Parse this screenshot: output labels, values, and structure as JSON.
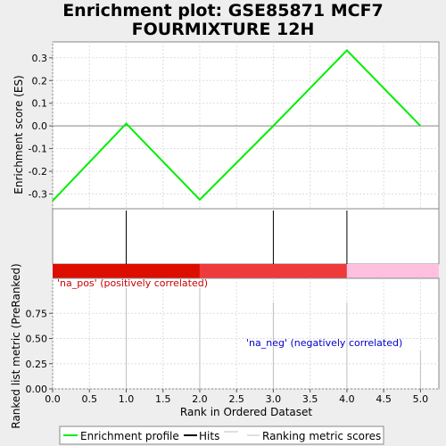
{
  "title": [
    "Enrichment plot: GSE85871 MCF7",
    "FOURMIXTURE 12H"
  ],
  "chart_data": [
    {
      "type": "line",
      "name": "enrichment-profile",
      "ylabel": "Enrichment score (ES)",
      "x": [
        0,
        1,
        2,
        3,
        4,
        5
      ],
      "y": [
        -0.33,
        0.01,
        -0.325,
        0.0,
        0.333,
        0.0
      ],
      "ylim": [
        -0.365,
        0.37
      ],
      "xlim": [
        0,
        5.25
      ],
      "yticks": [
        "0.3",
        "0.2",
        "0.1",
        "0.0",
        "-0.1",
        "-0.2",
        "-0.3"
      ],
      "ytick_values": [
        0.3,
        0.2,
        0.1,
        0.0,
        -0.1,
        -0.2,
        -0.3
      ],
      "grid": true,
      "line_color": "#00ee00"
    },
    {
      "type": "hits",
      "name": "hits",
      "hits_x": [
        1,
        3,
        4
      ],
      "xlim": [
        0,
        5.25
      ],
      "color_bar": [
        {
          "from": 0,
          "to": 2,
          "color": "#dd0e00"
        },
        {
          "from": 2,
          "to": 4,
          "color": "#ee3a3a"
        },
        {
          "from": 4,
          "to": 5.25,
          "color": "#ffc0e0"
        }
      ]
    },
    {
      "type": "bar",
      "name": "ranking-metric",
      "ylabel": "Ranked list metric (PreRanked)",
      "xlabel": "Rank in Ordered Dataset",
      "x": [
        1,
        2,
        3,
        4,
        5
      ],
      "values": [
        1.0,
        1.0,
        0.86,
        0.86,
        0.38
      ],
      "ylim": [
        0,
        1.0
      ],
      "xlim": [
        0,
        5.25
      ],
      "yticks": [
        "0.00",
        "0.25",
        "0.50",
        "0.75"
      ],
      "ytick_values": [
        0.0,
        0.25,
        0.5,
        0.75
      ],
      "xticks": [
        "0.0",
        "0.5",
        "1.0",
        "1.5",
        "2.0",
        "2.5",
        "3.0",
        "3.5",
        "4.0",
        "4.5",
        "5.0"
      ],
      "xtick_values": [
        0,
        0.5,
        1,
        1.5,
        2,
        2.5,
        3,
        3.5,
        4,
        4.5,
        5
      ],
      "annotations": {
        "pos": {
          "text": "'na_pos' (positively correlated)",
          "color": "#cc0000"
        },
        "neg": {
          "text": "'na_neg' (negatively correlated)",
          "color": "#0000cc"
        }
      },
      "grid": true
    }
  ],
  "legend": {
    "placement": "bottom",
    "items": [
      {
        "label": "Enrichment profile",
        "color": "#00ee00"
      },
      {
        "label": "Hits",
        "color": "#000000"
      },
      {
        "label": "Ranking metric scores",
        "color": "#c0c0c0"
      }
    ]
  }
}
